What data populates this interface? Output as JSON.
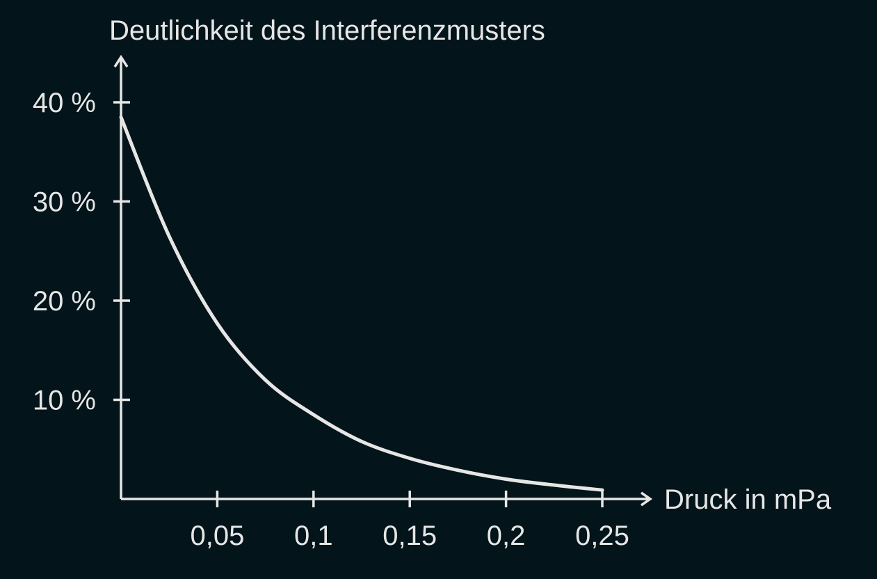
{
  "chart_data": {
    "type": "line",
    "title": "",
    "ylabel": "Deutlichkeit des Interferenzmusters",
    "xlabel": "Druck in mPa",
    "xlim": [
      0,
      0.25
    ],
    "ylim": [
      0,
      40
    ],
    "grid": false,
    "legend": "none",
    "x_ticks": [
      {
        "value": 0.05,
        "label": "0,05"
      },
      {
        "value": 0.1,
        "label": "0,1"
      },
      {
        "value": 0.15,
        "label": "0,15"
      },
      {
        "value": 0.2,
        "label": "0,2"
      },
      {
        "value": 0.25,
        "label": "0,25"
      }
    ],
    "y_ticks": [
      {
        "value": 10,
        "label": "10 %"
      },
      {
        "value": 20,
        "label": "20 %"
      },
      {
        "value": 30,
        "label": "30 %"
      },
      {
        "value": 40,
        "label": "40 %"
      }
    ],
    "series": [
      {
        "x": [
          0,
          0.025,
          0.05,
          0.075,
          0.1,
          0.125,
          0.15,
          0.175,
          0.2,
          0.225,
          0.25
        ],
        "values": [
          38.5,
          26.5,
          17.7,
          12,
          8.5,
          5.8,
          4.1,
          2.9,
          2,
          1.4,
          0.9
        ]
      }
    ],
    "colors": {
      "background": "#03141a",
      "foreground": "#e6e6e6"
    }
  }
}
